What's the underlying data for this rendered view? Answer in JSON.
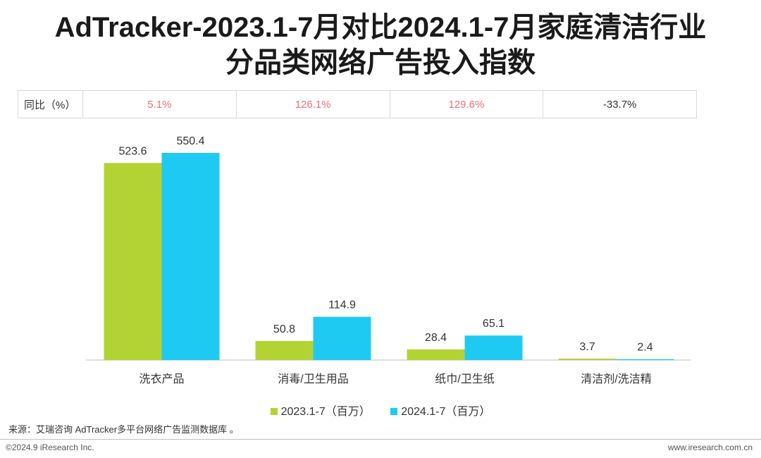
{
  "title_line1": "AdTracker-2023.1-7月对比2024.1-7月家庭清洁行业",
  "title_line2": "分品类网络广告投入指数",
  "yoy": {
    "label": "同比（%）",
    "values": [
      "5.1%",
      "126.1%",
      "129.6%",
      "-33.7%"
    ]
  },
  "colors": {
    "series_2023": "#b3d334",
    "series_2024": "#1fcaf2",
    "positive_yoy": "#e8707a"
  },
  "chart_data": {
    "type": "bar",
    "categories": [
      "洗衣产品",
      "消毒/卫生用品",
      "纸巾/卫生纸",
      "清洁剂/洗洁精"
    ],
    "series": [
      {
        "name": "2023.1-7（百万）",
        "values": [
          523.6,
          50.8,
          28.4,
          3.7
        ],
        "labels": [
          "523.6",
          "50.8",
          "28.4",
          "3.7"
        ]
      },
      {
        "name": "2024.1-7（百万）",
        "values": [
          550.4,
          114.9,
          65.1,
          2.4
        ],
        "labels": [
          "550.4",
          "114.9",
          "65.1",
          "2.4"
        ]
      }
    ],
    "ylim": [
      0,
      550.4
    ]
  },
  "footer": {
    "source": "来源：艾瑞咨询 AdTracker多平台网络广告监测数据库 。",
    "copyright": "©2024.9 iResearch Inc.",
    "website": "www.iresearch.com.cn"
  }
}
